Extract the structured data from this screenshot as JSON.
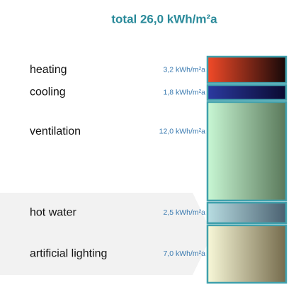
{
  "chart_data": {
    "type": "stacked-column",
    "title": "total 26,0 kWh/m²a",
    "categories": [
      "heating",
      "cooling",
      "ventilation",
      "hot water",
      "artificial lighting"
    ],
    "values": [
      3.2,
      1.8,
      12.0,
      2.5,
      7.0
    ],
    "value_labels": [
      "3,2 kWh/m²a",
      "1,8 kWh/m²a",
      "12,0 kWh/m²a",
      "2,5 kWh/m²a",
      "7,0 kWh/m²a"
    ],
    "colors": [
      "#f24a28",
      "#2b3aa0",
      "#c8f7d4",
      "#b8dde2",
      "#f8f8d8"
    ],
    "end_colors": [
      "#150808",
      "#0a0a30",
      "#5a785a",
      "#4a6070",
      "#756b4c"
    ],
    "border_color": "#3fa0ac"
  }
}
